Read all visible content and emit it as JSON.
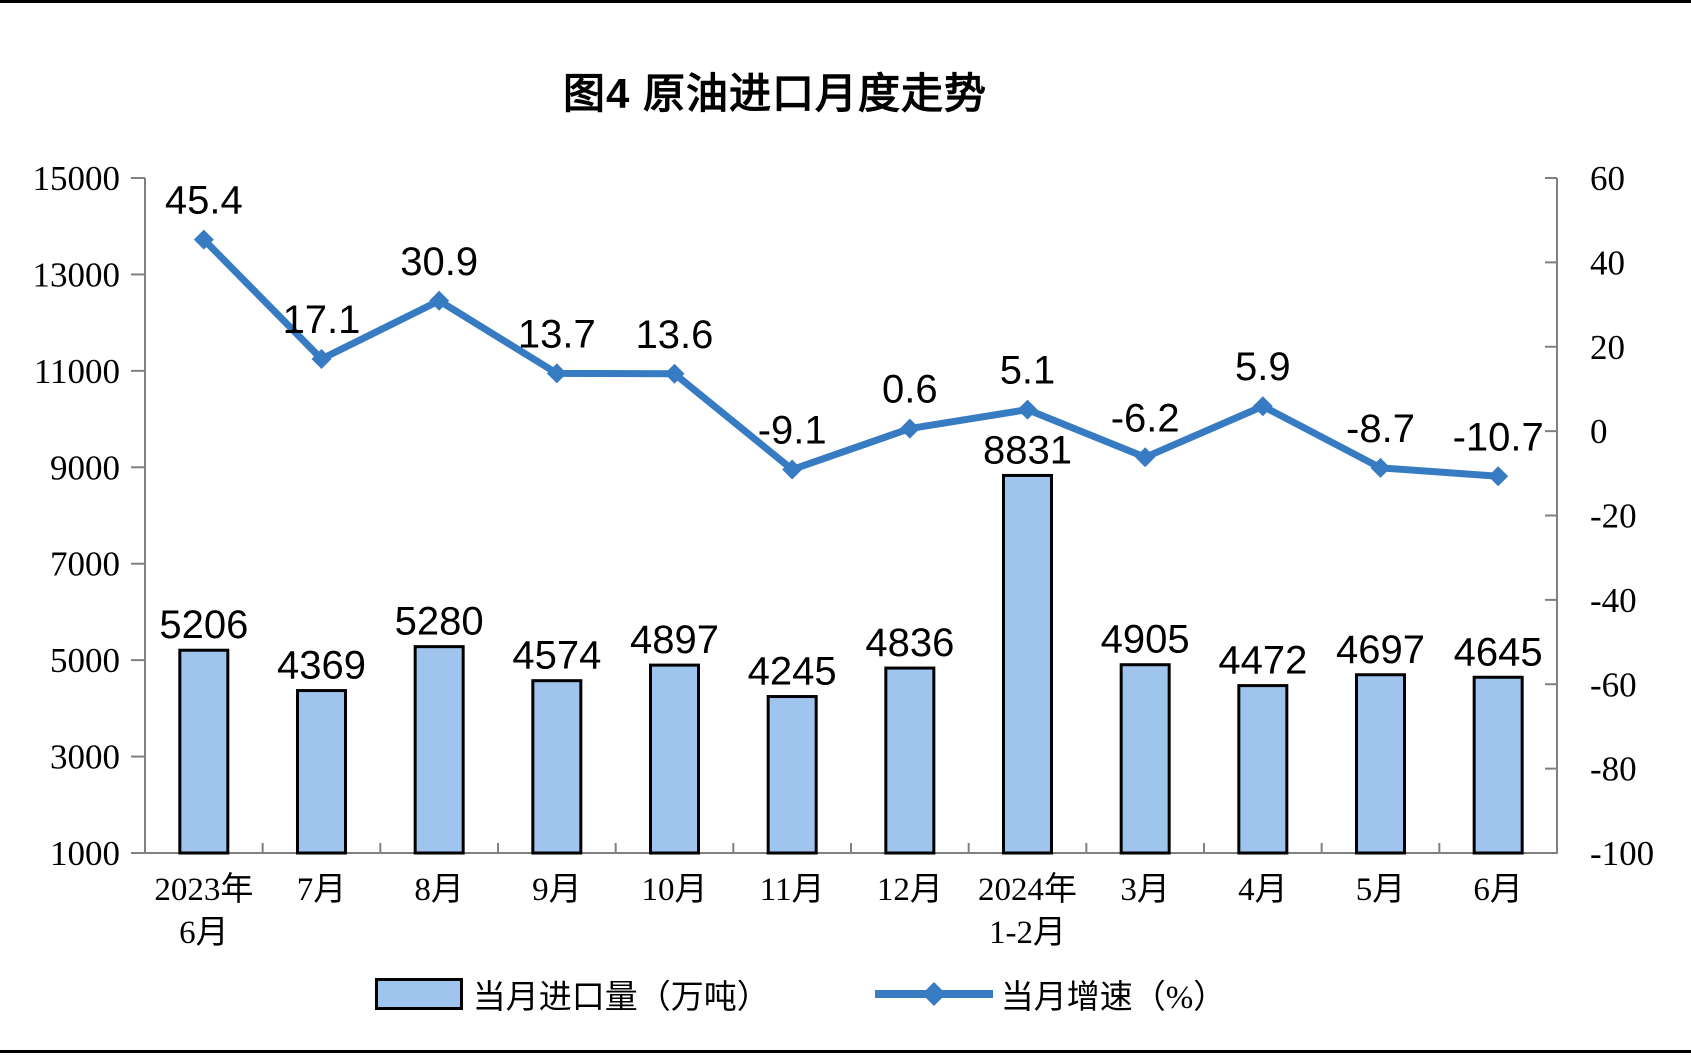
{
  "chart_data": {
    "type": "combo",
    "title": "图4 原油进口月度走势",
    "categories": [
      [
        "2023年",
        "6月"
      ],
      [
        "7月"
      ],
      [
        "8月"
      ],
      [
        "9月"
      ],
      [
        "10月"
      ],
      [
        "11月"
      ],
      [
        "12月"
      ],
      [
        "2024年",
        "1-2月"
      ],
      [
        "3月"
      ],
      [
        "4月"
      ],
      [
        "5月"
      ],
      [
        "6月"
      ]
    ],
    "series": [
      {
        "name": "当月进口量（万吨）",
        "type": "bar",
        "axis": "left",
        "values": [
          5206,
          4369,
          5280,
          4574,
          4897,
          4245,
          4836,
          8831,
          4905,
          4472,
          4697,
          4645
        ],
        "fill": "#9FC5EE",
        "stroke": "#000000"
      },
      {
        "name": "当月增速（%）",
        "type": "line",
        "axis": "right",
        "values": [
          45.4,
          17.1,
          30.9,
          13.7,
          13.6,
          -9.1,
          0.6,
          5.1,
          -6.2,
          5.9,
          -8.7,
          -10.7
        ],
        "color": "#377BC2"
      }
    ],
    "left_axis": {
      "min": 1000,
      "max": 15000,
      "ticks": [
        15000,
        13000,
        11000,
        9000,
        7000,
        5000,
        3000,
        1000
      ]
    },
    "right_axis": {
      "min": -100,
      "max": 60,
      "ticks": [
        60,
        40,
        20,
        0,
        -20,
        -40,
        -60,
        -80,
        -100
      ]
    },
    "grid": false,
    "legend_position": "bottom",
    "axis_color": "#808080",
    "text_color": "#000000"
  }
}
